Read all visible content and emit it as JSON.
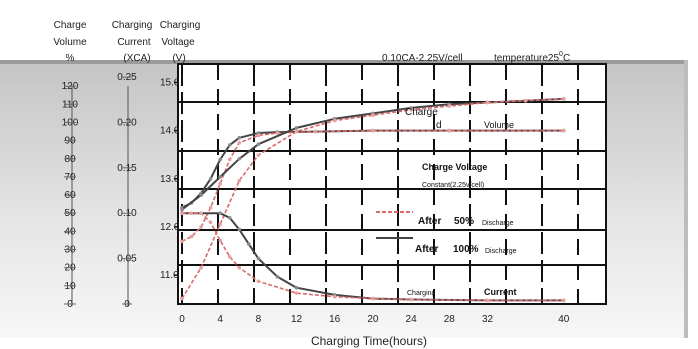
{
  "chart_data": {
    "type": "line",
    "xlabel": "Charging Time(hours)",
    "x_ticks": [
      "0",
      "4",
      "8",
      "12",
      "16",
      "20",
      "24",
      "28",
      "32",
      "40"
    ],
    "x_range": [
      0,
      44
    ],
    "y_axes": [
      {
        "id": "volume",
        "label_lines": [
          "Charge",
          "Volume",
          "%"
        ],
        "ticks": [
          "0",
          "10",
          "20",
          "30",
          "40",
          "50",
          "60",
          "70",
          "80",
          "90",
          "100",
          "110",
          "120"
        ],
        "range": [
          0,
          130
        ]
      },
      {
        "id": "current",
        "label_lines": [
          "Charging",
          "Current",
          "(XCA)"
        ],
        "ticks": [
          "0",
          "0.05",
          "0.10",
          "0.15",
          "0.20",
          "0.25"
        ],
        "range": [
          0,
          0.26
        ]
      },
      {
        "id": "voltage",
        "label_lines": [
          "Charging",
          "Voltage",
          "(V)"
        ],
        "ticks": [
          "11.0",
          "12.0",
          "13.0",
          "14.0",
          "15.0"
        ],
        "range": [
          10.4,
          15.3
        ]
      }
    ],
    "condition": "0.10CA-2.25V/cell",
    "temperature": {
      "prefix": "temperature25",
      "sup": "0",
      "suffix": "C"
    },
    "annotations": {
      "volume_top": "Charge",
      "volume_mid": "d",
      "volume_right": "Volume",
      "voltage_a": "Charge Voltage",
      "voltage_b": "Constant(2.25v/cell)",
      "after50_a": "After",
      "after50_b": "50%",
      "after50_c": "Discharge",
      "after100_a": "After",
      "after100_b": "100%",
      "after100_c": "Discharge",
      "current_a": "Charging",
      "current_b": "Current"
    },
    "series": [
      {
        "axis": "voltage",
        "x": [
          0,
          1,
          2,
          3,
          4,
          5,
          6,
          8,
          10,
          14,
          20,
          28,
          40
        ],
        "y": [
          12.4,
          12.5,
          12.7,
          13.0,
          13.4,
          13.7,
          13.85,
          13.95,
          13.97,
          13.98,
          14.0,
          14.0,
          14.0
        ],
        "color": "#444444",
        "dash": false
      },
      {
        "axis": "voltage",
        "x": [
          0,
          1,
          2,
          3,
          4,
          5,
          6,
          8,
          10,
          14,
          20,
          28,
          40
        ],
        "y": [
          11.7,
          11.8,
          12.0,
          12.4,
          12.9,
          13.4,
          13.75,
          13.9,
          13.95,
          13.98,
          14.0,
          14.0,
          14.0
        ],
        "color": "#d86a6a",
        "dash": true
      },
      {
        "axis": "volume",
        "x": [
          0,
          2,
          4,
          6,
          8,
          12,
          16,
          20,
          24,
          28,
          32,
          36,
          40
        ],
        "y": [
          52,
          60,
          70,
          80,
          88,
          97,
          102,
          105,
          108,
          110,
          111,
          112,
          113
        ],
        "color": "#444444",
        "dash": false
      },
      {
        "axis": "volume",
        "x": [
          0,
          2,
          4,
          6,
          8,
          12,
          16,
          20,
          24,
          28,
          32,
          36,
          40
        ],
        "y": [
          3,
          20,
          44,
          68,
          82,
          95,
          101,
          104,
          107,
          109,
          111,
          112,
          113
        ],
        "color": "#d86a6a",
        "dash": true
      },
      {
        "axis": "current",
        "x": [
          0,
          2,
          4,
          5,
          6,
          7,
          8,
          10,
          12,
          16,
          20,
          24,
          32,
          40
        ],
        "y": [
          0.1,
          0.1,
          0.1,
          0.095,
          0.082,
          0.066,
          0.05,
          0.03,
          0.018,
          0.01,
          0.006,
          0.005,
          0.004,
          0.004
        ],
        "color": "#444444",
        "dash": false
      },
      {
        "axis": "current",
        "x": [
          0,
          1,
          2,
          3,
          4,
          5,
          6,
          8,
          12,
          16,
          20,
          24,
          32,
          40
        ],
        "y": [
          0.1,
          0.1,
          0.1,
          0.09,
          0.07,
          0.052,
          0.04,
          0.025,
          0.012,
          0.008,
          0.006,
          0.005,
          0.004,
          0.004
        ],
        "color": "#d86a6a",
        "dash": true
      }
    ],
    "grid": true
  }
}
